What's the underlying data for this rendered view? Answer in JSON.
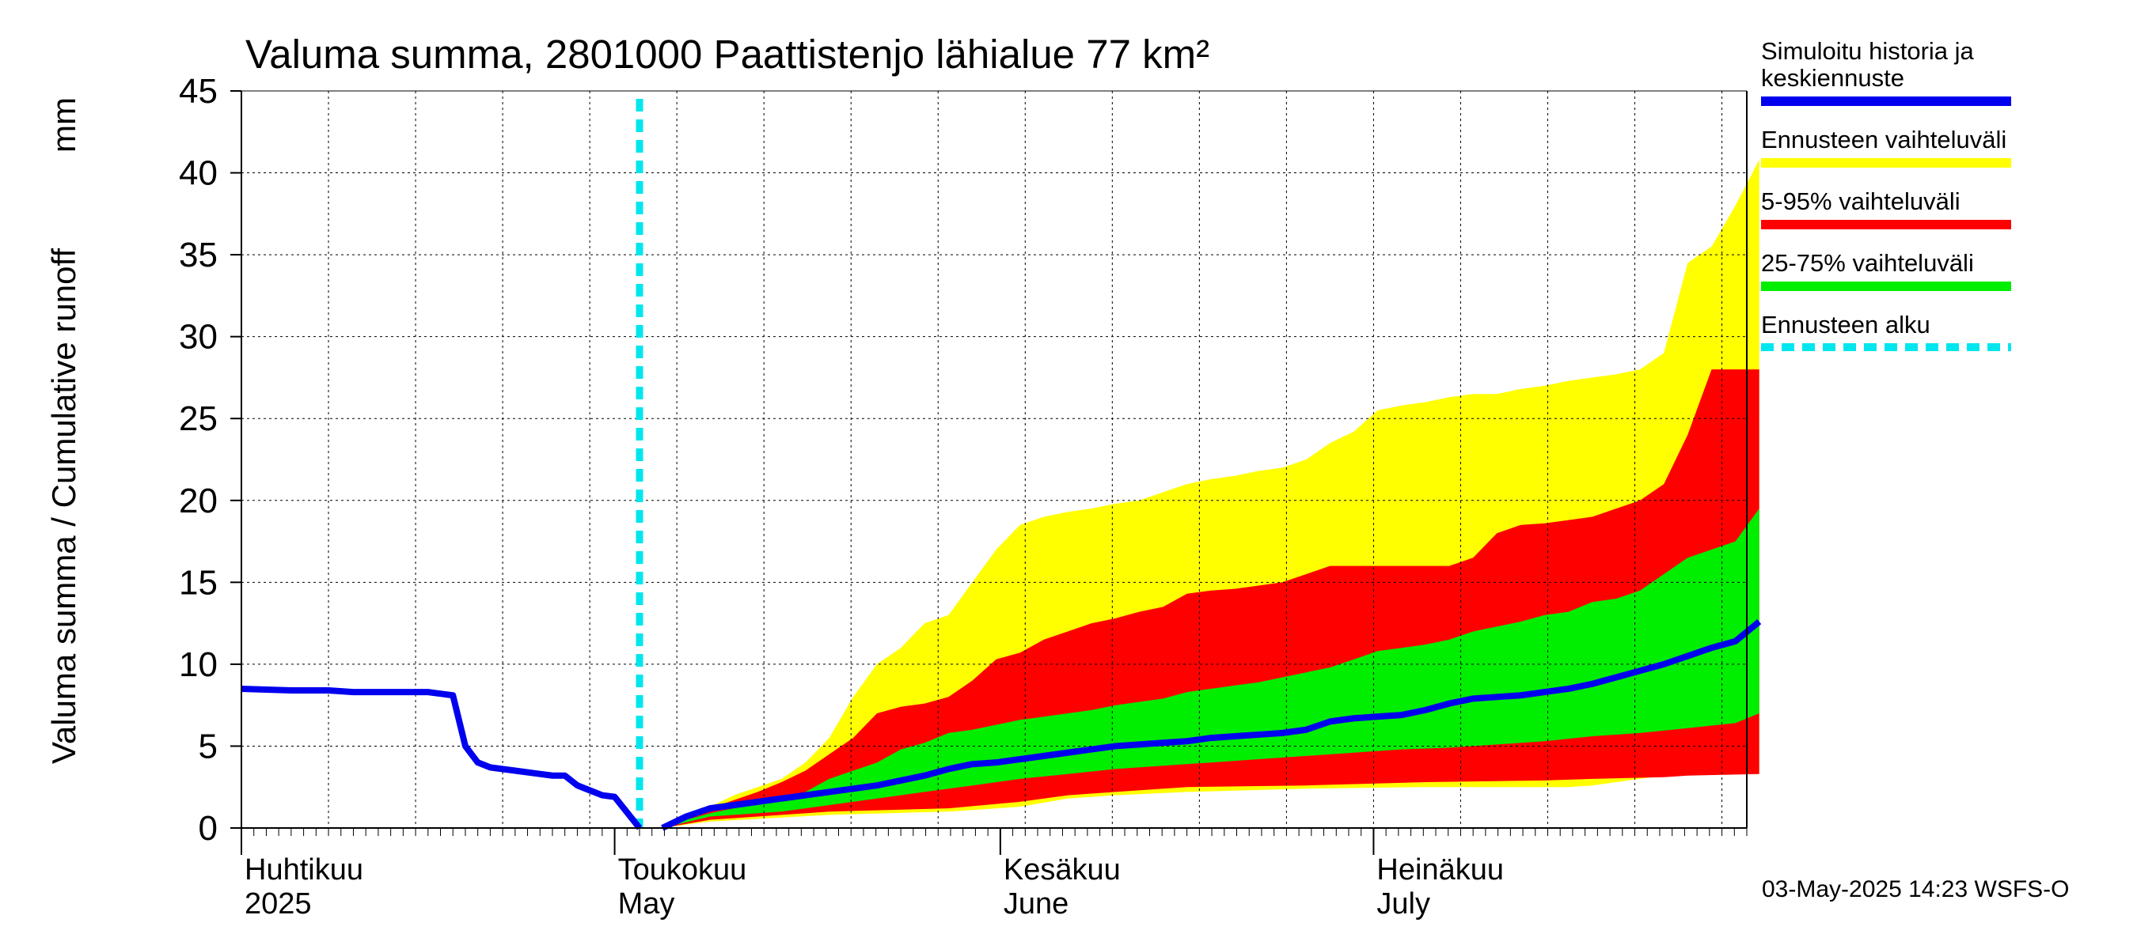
{
  "chart_data": {
    "type": "area",
    "title": "Valuma summa, 2801000 Paattistenjo lähialue 77 km²",
    "ylabel_left": "Valuma summa / Cumulative runoff",
    "ylabel_unit": "mm",
    "ylim": [
      0,
      45
    ],
    "y_ticks": [
      0,
      5,
      10,
      15,
      20,
      25,
      30,
      35,
      40,
      45
    ],
    "xlim": [
      "2025-04-01",
      "2025-07-31"
    ],
    "month_labels": [
      {
        "fi": "Huhtikuu",
        "en": "2025",
        "date": "2025-04-01"
      },
      {
        "fi": "Toukokuu",
        "en": "May",
        "date": "2025-05-01"
      },
      {
        "fi": "Kesäkuu",
        "en": "June",
        "date": "2025-06-01"
      },
      {
        "fi": "Heinäkuu",
        "en": "July",
        "date": "2025-07-01"
      }
    ],
    "grid": true,
    "forecast_start": "2025-05-03",
    "history_series": {
      "name": "Simuloitu historia ja keskiennuste",
      "color": "#0000ee",
      "points": [
        [
          "2025-04-01",
          8.5
        ],
        [
          "2025-04-05",
          8.4
        ],
        [
          "2025-04-08",
          8.4
        ],
        [
          "2025-04-10",
          8.3
        ],
        [
          "2025-04-14",
          8.3
        ],
        [
          "2025-04-16",
          8.3
        ],
        [
          "2025-04-17",
          8.2
        ],
        [
          "2025-04-18",
          8.1
        ],
        [
          "2025-04-19",
          5.0
        ],
        [
          "2025-04-20",
          4.0
        ],
        [
          "2025-04-21",
          3.7
        ],
        [
          "2025-04-23",
          3.5
        ],
        [
          "2025-04-25",
          3.3
        ],
        [
          "2025-04-26",
          3.2
        ],
        [
          "2025-04-27",
          3.2
        ],
        [
          "2025-04-28",
          2.6
        ],
        [
          "2025-04-29",
          2.3
        ],
        [
          "2025-04-30",
          2.0
        ],
        [
          "2025-05-01",
          1.9
        ],
        [
          "2025-05-03",
          0.0
        ]
      ]
    },
    "series": [
      {
        "name": "Ennusteen vaihteluväli",
        "color": "#ffff00",
        "upper": [
          [
            3,
            0
          ],
          [
            4,
            0.8
          ],
          [
            5,
            1.3
          ],
          [
            6,
            2.0
          ],
          [
            7,
            2.5
          ],
          [
            8,
            3.0
          ],
          [
            9,
            4.0
          ],
          [
            10,
            5.5
          ],
          [
            11,
            8.0
          ],
          [
            12,
            10.0
          ],
          [
            13,
            11.0
          ],
          [
            14,
            12.5
          ],
          [
            15,
            13.0
          ],
          [
            16,
            15.0
          ],
          [
            17,
            17.0
          ],
          [
            18,
            18.5
          ],
          [
            19,
            19.0
          ],
          [
            20,
            19.3
          ],
          [
            21,
            19.5
          ],
          [
            22,
            19.8
          ],
          [
            23,
            20.0
          ],
          [
            24,
            20.5
          ],
          [
            25,
            21.0
          ],
          [
            26,
            21.3
          ],
          [
            27,
            21.5
          ],
          [
            28,
            21.8
          ],
          [
            29,
            22.0
          ],
          [
            30,
            22.5
          ],
          [
            31,
            23.5
          ],
          [
            32,
            24.2
          ],
          [
            33,
            25.5
          ],
          [
            34,
            25.8
          ],
          [
            35,
            26.0
          ],
          [
            36,
            26.3
          ],
          [
            37,
            26.5
          ],
          [
            38,
            26.5
          ],
          [
            39,
            26.8
          ],
          [
            40,
            27.0
          ],
          [
            41,
            27.3
          ],
          [
            42,
            27.5
          ],
          [
            43,
            27.7
          ],
          [
            44,
            28.0
          ],
          [
            45,
            29.0
          ],
          [
            46,
            34.5
          ],
          [
            47,
            35.5
          ],
          [
            48,
            38.0
          ],
          [
            49,
            40.8
          ]
        ],
        "lower": [
          [
            3,
            0
          ],
          [
            5,
            0.4
          ],
          [
            10,
            0.8
          ],
          [
            15,
            1.0
          ],
          [
            18,
            1.3
          ],
          [
            20,
            1.8
          ],
          [
            22,
            2.0
          ],
          [
            25,
            2.2
          ],
          [
            30,
            2.4
          ],
          [
            35,
            2.5
          ],
          [
            40,
            2.5
          ],
          [
            41,
            2.5
          ],
          [
            42,
            2.6
          ],
          [
            43,
            2.8
          ],
          [
            44,
            3.0
          ],
          [
            45,
            3.2
          ],
          [
            46,
            3.3
          ],
          [
            49,
            3.5
          ]
        ]
      },
      {
        "name": "5-95% vaihteluväli",
        "color": "#ff0000",
        "upper": [
          [
            3,
            0
          ],
          [
            4,
            0.7
          ],
          [
            5,
            1.2
          ],
          [
            6,
            1.7
          ],
          [
            7,
            2.2
          ],
          [
            8,
            2.8
          ],
          [
            9,
            3.5
          ],
          [
            10,
            4.5
          ],
          [
            11,
            5.5
          ],
          [
            12,
            7.0
          ],
          [
            13,
            7.4
          ],
          [
            14,
            7.6
          ],
          [
            15,
            8.0
          ],
          [
            16,
            9.0
          ],
          [
            17,
            10.3
          ],
          [
            18,
            10.7
          ],
          [
            19,
            11.5
          ],
          [
            20,
            12.0
          ],
          [
            21,
            12.5
          ],
          [
            22,
            12.8
          ],
          [
            23,
            13.2
          ],
          [
            24,
            13.5
          ],
          [
            25,
            14.3
          ],
          [
            26,
            14.5
          ],
          [
            27,
            14.6
          ],
          [
            28,
            14.8
          ],
          [
            29,
            15.0
          ],
          [
            30,
            15.5
          ],
          [
            31,
            16.0
          ],
          [
            32,
            16.0
          ],
          [
            33,
            16.0
          ],
          [
            34,
            16.0
          ],
          [
            35,
            16.0
          ],
          [
            36,
            16.0
          ],
          [
            37,
            16.5
          ],
          [
            38,
            18.0
          ],
          [
            39,
            18.5
          ],
          [
            40,
            18.6
          ],
          [
            41,
            18.8
          ],
          [
            42,
            19.0
          ],
          [
            43,
            19.5
          ],
          [
            44,
            20.0
          ],
          [
            45,
            21.0
          ],
          [
            46,
            24.0
          ],
          [
            47,
            28.0
          ],
          [
            48,
            28.0
          ],
          [
            49,
            28.0
          ]
        ],
        "lower": [
          [
            3,
            0
          ],
          [
            5,
            0.5
          ],
          [
            10,
            1.0
          ],
          [
            15,
            1.2
          ],
          [
            18,
            1.6
          ],
          [
            20,
            2.0
          ],
          [
            22,
            2.2
          ],
          [
            25,
            2.5
          ],
          [
            30,
            2.6
          ],
          [
            35,
            2.8
          ],
          [
            40,
            2.9
          ],
          [
            42,
            3.0
          ],
          [
            45,
            3.1
          ],
          [
            46,
            3.2
          ],
          [
            49,
            3.3
          ]
        ]
      },
      {
        "name": "25-75% vaihteluväli",
        "color": "#00ee00",
        "upper": [
          [
            3,
            0
          ],
          [
            4,
            0.5
          ],
          [
            5,
            0.9
          ],
          [
            6,
            1.2
          ],
          [
            7,
            1.5
          ],
          [
            8,
            1.8
          ],
          [
            9,
            2.2
          ],
          [
            10,
            3.0
          ],
          [
            11,
            3.5
          ],
          [
            12,
            4.0
          ],
          [
            13,
            4.8
          ],
          [
            14,
            5.2
          ],
          [
            15,
            5.8
          ],
          [
            16,
            6.0
          ],
          [
            17,
            6.3
          ],
          [
            18,
            6.6
          ],
          [
            19,
            6.8
          ],
          [
            20,
            7.0
          ],
          [
            21,
            7.2
          ],
          [
            22,
            7.5
          ],
          [
            23,
            7.7
          ],
          [
            24,
            7.9
          ],
          [
            25,
            8.3
          ],
          [
            26,
            8.5
          ],
          [
            27,
            8.7
          ],
          [
            28,
            8.9
          ],
          [
            29,
            9.2
          ],
          [
            30,
            9.5
          ],
          [
            31,
            9.8
          ],
          [
            32,
            10.3
          ],
          [
            33,
            10.8
          ],
          [
            34,
            11.0
          ],
          [
            35,
            11.2
          ],
          [
            36,
            11.5
          ],
          [
            37,
            12.0
          ],
          [
            38,
            12.3
          ],
          [
            39,
            12.6
          ],
          [
            40,
            13.0
          ],
          [
            41,
            13.2
          ],
          [
            42,
            13.8
          ],
          [
            43,
            14.0
          ],
          [
            44,
            14.5
          ],
          [
            45,
            15.5
          ],
          [
            46,
            16.5
          ],
          [
            47,
            17.0
          ],
          [
            48,
            17.5
          ],
          [
            49,
            19.5
          ]
        ],
        "lower": [
          [
            3,
            0
          ],
          [
            5,
            0.7
          ],
          [
            8,
            1.0
          ],
          [
            10,
            1.4
          ],
          [
            12,
            1.8
          ],
          [
            14,
            2.2
          ],
          [
            16,
            2.6
          ],
          [
            18,
            3.0
          ],
          [
            20,
            3.3
          ],
          [
            22,
            3.6
          ],
          [
            24,
            3.8
          ],
          [
            26,
            4.0
          ],
          [
            28,
            4.2
          ],
          [
            30,
            4.4
          ],
          [
            32,
            4.6
          ],
          [
            34,
            4.8
          ],
          [
            36,
            4.9
          ],
          [
            38,
            5.1
          ],
          [
            40,
            5.3
          ],
          [
            42,
            5.6
          ],
          [
            44,
            5.8
          ],
          [
            46,
            6.1
          ],
          [
            48,
            6.4
          ],
          [
            49,
            7.0
          ]
        ]
      },
      {
        "name": "keskiennuste",
        "color": "#0000ee",
        "line": [
          [
            3,
            0
          ],
          [
            4,
            0.7
          ],
          [
            5,
            1.2
          ],
          [
            6,
            1.4
          ],
          [
            7,
            1.6
          ],
          [
            8,
            1.8
          ],
          [
            9,
            2.0
          ],
          [
            10,
            2.2
          ],
          [
            11,
            2.4
          ],
          [
            12,
            2.6
          ],
          [
            13,
            2.9
          ],
          [
            14,
            3.2
          ],
          [
            15,
            3.6
          ],
          [
            16,
            3.9
          ],
          [
            17,
            4.0
          ],
          [
            18,
            4.2
          ],
          [
            19,
            4.4
          ],
          [
            20,
            4.6
          ],
          [
            21,
            4.8
          ],
          [
            22,
            5.0
          ],
          [
            23,
            5.1
          ],
          [
            24,
            5.2
          ],
          [
            25,
            5.3
          ],
          [
            26,
            5.5
          ],
          [
            27,
            5.6
          ],
          [
            28,
            5.7
          ],
          [
            29,
            5.8
          ],
          [
            30,
            6.0
          ],
          [
            31,
            6.5
          ],
          [
            32,
            6.7
          ],
          [
            33,
            6.8
          ],
          [
            34,
            6.9
          ],
          [
            35,
            7.2
          ],
          [
            36,
            7.6
          ],
          [
            37,
            7.9
          ],
          [
            38,
            8.0
          ],
          [
            39,
            8.1
          ],
          [
            40,
            8.3
          ],
          [
            41,
            8.5
          ],
          [
            42,
            8.8
          ],
          [
            43,
            9.2
          ],
          [
            44,
            9.6
          ],
          [
            45,
            10.0
          ],
          [
            46,
            10.5
          ],
          [
            47,
            11.0
          ],
          [
            48,
            11.4
          ],
          [
            49,
            12.6
          ]
        ]
      }
    ]
  },
  "legend": {
    "items": [
      {
        "label": "Simuloitu historia ja\nkeskiennuste",
        "color": "#0000ee",
        "style": "solid"
      },
      {
        "label": "Ennusteen vaihteluväli",
        "color": "#ffff00",
        "style": "solid"
      },
      {
        "label": "5-95% vaihteluväli",
        "color": "#ff0000",
        "style": "solid"
      },
      {
        "label": "25-75% vaihteluväli",
        "color": "#00ee00",
        "style": "solid"
      },
      {
        "label": "Ennusteen alku",
        "color": "#00e6ee",
        "style": "dashed"
      }
    ]
  },
  "footer": "03-May-2025 14:23 WSFS-O"
}
